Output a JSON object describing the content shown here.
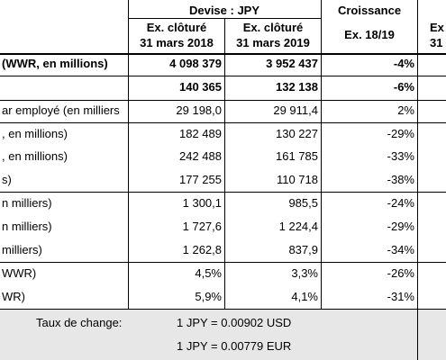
{
  "header": {
    "currency": "Devise : JPY",
    "growth": "Croissance",
    "col1_line1": "Ex. clôturé",
    "col1_line2": "31 mars 2018",
    "col2_line1": "Ex. clôturé",
    "col2_line2": "31 mars 2019",
    "col3": "Ex. 18/19",
    "col4_line1": "Ex",
    "col4_line2": "31"
  },
  "rows": [
    {
      "label": "(WWR, en millions)",
      "v1": "4 098 379",
      "v2": "3 952 437",
      "growth": "-4%",
      "bold": true
    },
    {
      "label": "",
      "v1": "140 365",
      "v2": "132 138",
      "growth": "-6%",
      "bold": true
    },
    {
      "label": "ar employé (en milliers",
      "v1": "29 198,0",
      "v2": "29 911,4",
      "growth": "2%",
      "bold": false
    },
    {
      "label": ", en millions)",
      "v1": "182 489",
      "v2": "130 227",
      "growth": "-29%",
      "bold": false
    },
    {
      "label": ", en millions)",
      "v1": "242 488",
      "v2": "161 785",
      "growth": "-33%",
      "bold": false
    },
    {
      "label": "s)",
      "v1": "177 255",
      "v2": "110 718",
      "growth": "-38%",
      "bold": false
    },
    {
      "label": "n milliers)",
      "v1": "1 300,1",
      "v2": "985,5",
      "growth": "-24%",
      "bold": false
    },
    {
      "label": "n milliers)",
      "v1": "1 727,6",
      "v2": "1 224,4",
      "growth": "-29%",
      "bold": false
    },
    {
      "label": " milliers)",
      "v1": "1 262,8",
      "v2": "837,9",
      "growth": "-34%",
      "bold": false
    },
    {
      "label": "WWR)",
      "v1": "4,5%",
      "v2": "3,3%",
      "growth": "-26%",
      "bold": false
    },
    {
      "label": "WR)",
      "v1": "5,9%",
      "v2": "4,1%",
      "growth": "-31%",
      "bold": false
    }
  ],
  "footer": {
    "label": "Taux de change:",
    "usd": "1 JPY =  0.00902 USD",
    "eur": "1 JPY =  0.00779 EUR"
  }
}
